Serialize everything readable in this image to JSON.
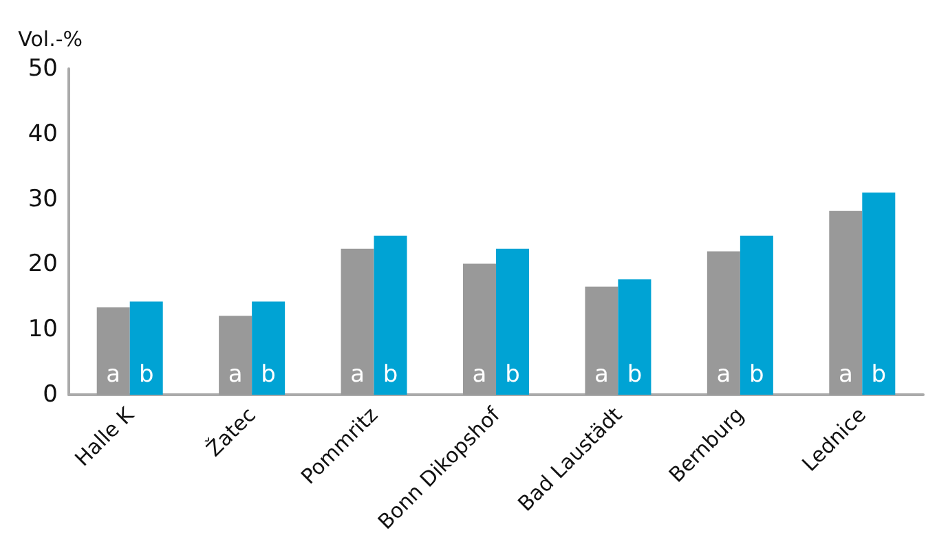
{
  "chart_data": {
    "type": "bar",
    "ylabel": "Vol.-%",
    "categories": [
      "Halle K",
      "Žatec",
      "Pommritz",
      "Bonn Dikopshof",
      "Bad Laustädt",
      "Bernburg",
      "Lednice"
    ],
    "series": [
      {
        "name": "a",
        "color": "#999999",
        "values": [
          13.4,
          12.1,
          22.4,
          20.1,
          16.6,
          22.0,
          28.2
        ]
      },
      {
        "name": "b",
        "color": "#00a3d4",
        "values": [
          14.3,
          14.3,
          24.4,
          22.4,
          17.7,
          24.4,
          31.0
        ]
      }
    ],
    "ylim": [
      0,
      50
    ],
    "yticks": [
      0,
      10,
      20,
      30,
      40,
      50
    ],
    "grid": false,
    "legend": false
  }
}
